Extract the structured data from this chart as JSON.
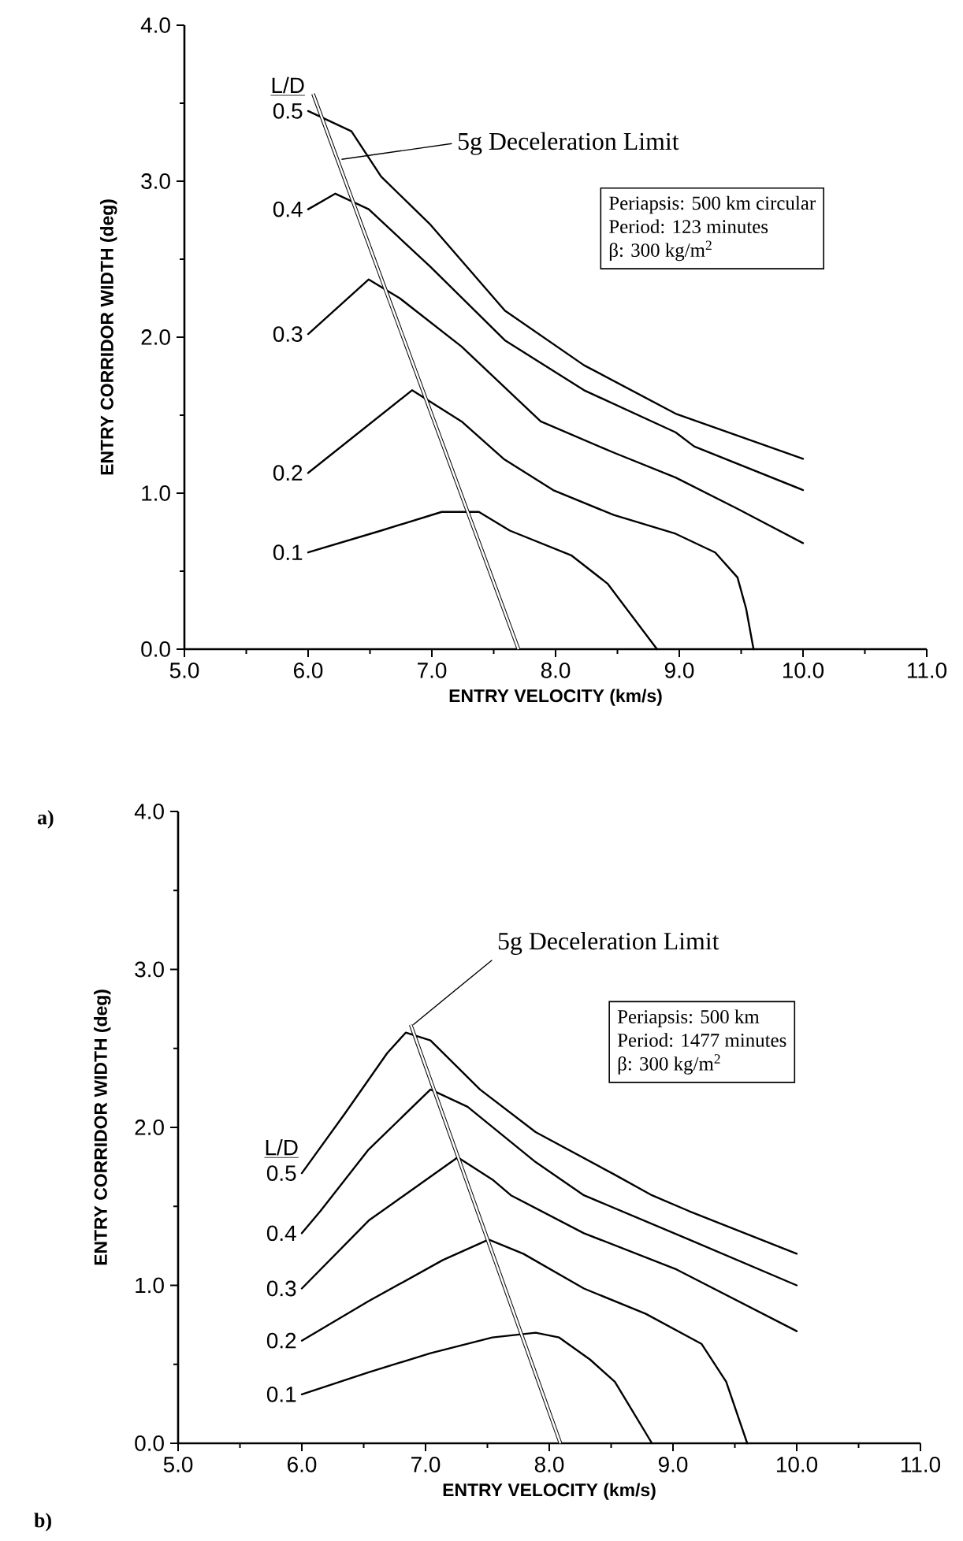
{
  "chart_data": [
    {
      "type": "line",
      "title": "a)",
      "xlabel": "ENTRY VELOCITY (km/s)",
      "ylabel": "ENTRY CORRIDOR WIDTH (deg)",
      "legend_title": "L/D",
      "xlim": [
        5,
        11
      ],
      "ylim": [
        0,
        4
      ],
      "xticks": [
        {
          "value": 5,
          "label": "5.0"
        },
        {
          "value": 6,
          "label": "6.0"
        },
        {
          "value": 7,
          "label": "7.0"
        },
        {
          "value": 8,
          "label": "8.0"
        },
        {
          "value": 9,
          "label": "9.0"
        },
        {
          "value": 10,
          "label": "10.0"
        },
        {
          "value": 11,
          "label": "11.0"
        }
      ],
      "yticks": [
        {
          "value": 0,
          "label": "0.0"
        },
        {
          "value": 1,
          "label": "1.0"
        },
        {
          "value": 2,
          "label": "2.0"
        },
        {
          "value": 3,
          "label": "3.0"
        },
        {
          "value": 4,
          "label": "4.0"
        }
      ],
      "annotations": [
        {
          "text": "5g Deceleration Limit",
          "x": 6.27,
          "y": 3.14
        },
        "Periapsis: 500 km circular",
        "Period: 123 minutes",
        "β: 300 kg/m$^{2}$"
      ],
      "series": [
        {
          "name": "0.5",
          "color": "#000000",
          "x": [
            6.0,
            6.35,
            6.59,
            6.99,
            7.59,
            8.23,
            8.97,
            10.0
          ],
          "values": [
            3.45,
            3.32,
            3.03,
            2.72,
            2.17,
            1.82,
            1.51,
            1.22
          ]
        },
        {
          "name": "0.4",
          "color": "#000000",
          "x": [
            6.0,
            6.22,
            6.49,
            6.99,
            7.59,
            8.23,
            8.97,
            9.12,
            10.0
          ],
          "values": [
            2.82,
            2.92,
            2.82,
            2.45,
            1.98,
            1.66,
            1.39,
            1.3,
            1.02
          ]
        },
        {
          "name": "0.3",
          "color": "#000000",
          "x": [
            6.0,
            6.49,
            6.74,
            7.24,
            7.88,
            8.47,
            8.97,
            9.47,
            10.0
          ],
          "values": [
            2.02,
            2.37,
            2.25,
            1.94,
            1.46,
            1.26,
            1.1,
            0.9,
            0.68
          ]
        },
        {
          "name": "0.2",
          "color": "#000000",
          "x": [
            6.0,
            6.84,
            7.24,
            7.58,
            7.98,
            8.47,
            8.97,
            9.29,
            9.47,
            9.54,
            9.6
          ],
          "values": [
            1.13,
            1.66,
            1.46,
            1.22,
            1.02,
            0.86,
            0.74,
            0.62,
            0.46,
            0.26,
            0.0
          ]
        },
        {
          "name": "0.1",
          "color": "#000000",
          "x": [
            6.0,
            6.59,
            7.08,
            7.38,
            7.63,
            8.13,
            8.42,
            8.82
          ],
          "values": [
            0.62,
            0.76,
            0.88,
            0.88,
            0.76,
            0.6,
            0.42,
            0.0
          ]
        },
        {
          "color": "#000000",
          "x": [
            6.04,
            7.7
          ],
          "values": [
            3.56,
            0.0
          ]
        }
      ]
    },
    {
      "type": "line",
      "title": "b)",
      "xlabel": "ENTRY VELOCITY (km/s)",
      "ylabel": "ENTRY CORRIDOR WIDTH (deg)",
      "legend_title": "L/D",
      "xlim": [
        5,
        11
      ],
      "ylim": [
        0,
        4
      ],
      "xticks": [
        {
          "value": 5,
          "label": "5.0"
        },
        {
          "value": 6,
          "label": "6.0"
        },
        {
          "value": 7,
          "label": "7.0"
        },
        {
          "value": 8,
          "label": "8.0"
        },
        {
          "value": 9,
          "label": "9.0"
        },
        {
          "value": 10,
          "label": "10.0"
        },
        {
          "value": 11,
          "label": "11.0"
        }
      ],
      "yticks": [
        {
          "value": 0,
          "label": "0.0"
        },
        {
          "value": 1,
          "label": "1.0"
        },
        {
          "value": 2,
          "label": "2.0"
        },
        {
          "value": 3,
          "label": "3.0"
        },
        {
          "value": 4,
          "label": "4.0"
        }
      ],
      "annotations": [
        {
          "text": "5g Deceleration Limit",
          "x": 6.9,
          "y": 2.65
        },
        "Periapsis: 500 km",
        "Period: 1477 minutes",
        "β: 300 kg/m$^{2}$"
      ],
      "series": [
        {
          "name": "0.5",
          "color": "#000000",
          "x": [
            6.0,
            6.35,
            6.69,
            6.84,
            7.04,
            7.44,
            7.89,
            8.53,
            8.83,
            9.13,
            10.0
          ],
          "values": [
            1.71,
            2.09,
            2.47,
            2.6,
            2.55,
            2.24,
            1.97,
            1.7,
            1.57,
            1.47,
            1.2
          ]
        },
        {
          "name": "0.4",
          "color": "#000000",
          "x": [
            6.0,
            6.15,
            6.54,
            7.04,
            7.34,
            7.89,
            8.28,
            9.13,
            10.0
          ],
          "values": [
            1.33,
            1.47,
            1.86,
            2.24,
            2.13,
            1.78,
            1.57,
            1.29,
            1.0
          ]
        },
        {
          "name": "0.3",
          "color": "#000000",
          "x": [
            6.0,
            6.54,
            7.26,
            7.54,
            7.69,
            8.28,
            9.03,
            10.0
          ],
          "values": [
            0.98,
            1.41,
            1.81,
            1.67,
            1.57,
            1.33,
            1.1,
            0.71
          ]
        },
        {
          "name": "0.2",
          "color": "#000000",
          "x": [
            6.0,
            6.54,
            7.14,
            7.51,
            7.79,
            8.28,
            8.78,
            9.23,
            9.43,
            9.53,
            9.6
          ],
          "values": [
            0.65,
            0.9,
            1.16,
            1.29,
            1.2,
            0.98,
            0.82,
            0.63,
            0.39,
            0.16,
            0.0
          ]
        },
        {
          "name": "0.1",
          "color": "#000000",
          "x": [
            6.0,
            6.54,
            7.04,
            7.54,
            7.89,
            8.08,
            8.33,
            8.53,
            8.83
          ],
          "values": [
            0.31,
            0.45,
            0.57,
            0.67,
            0.7,
            0.67,
            0.53,
            0.39,
            0.0
          ]
        },
        {
          "color": "#000000",
          "x": [
            6.88,
            8.09
          ],
          "values": [
            2.65,
            0.0
          ]
        }
      ]
    }
  ]
}
